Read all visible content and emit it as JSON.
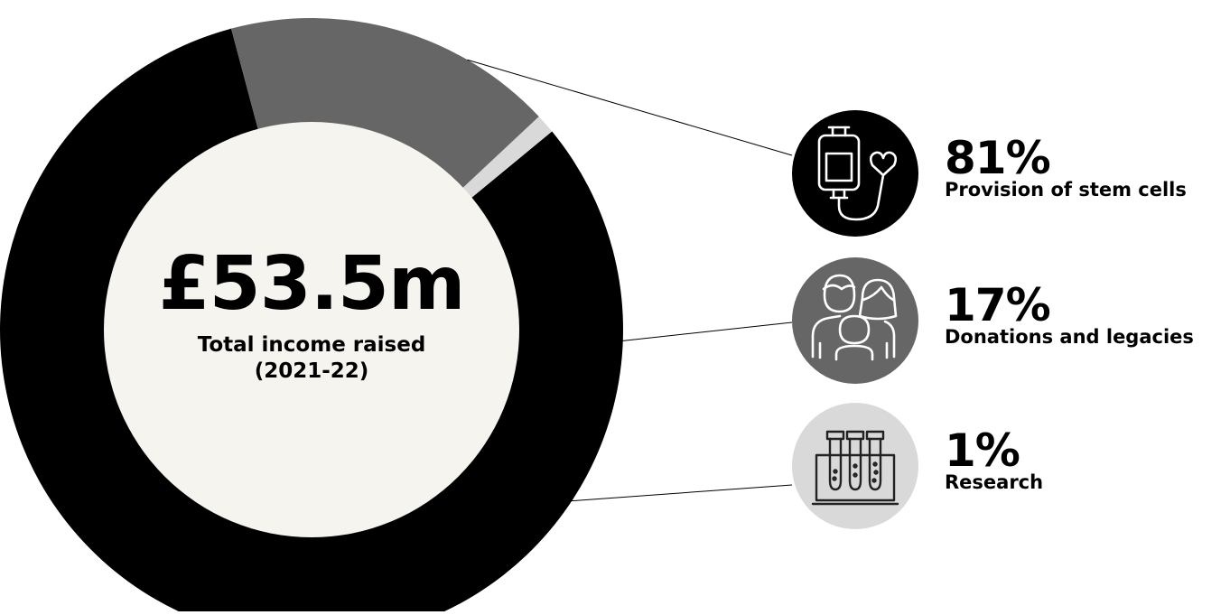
{
  "chart_data": {
    "type": "pie",
    "categories": [
      "Provision of stem cells",
      "Donations and legacies",
      "Research"
    ],
    "values": [
      81,
      17,
      1
    ],
    "value_labels": [
      "81%",
      "17%",
      "1%"
    ],
    "center_value": "£53.5m",
    "center_label_line1": "Total income raised",
    "center_label_line2": "(2021-22)",
    "colors": [
      "#000000",
      "#666666",
      "#d9d9d9"
    ],
    "center_color": "#f5f4ef",
    "icons": [
      "blood-bag-heart-icon",
      "family-icon",
      "test-tubes-icon"
    ],
    "legend_position": "right"
  }
}
